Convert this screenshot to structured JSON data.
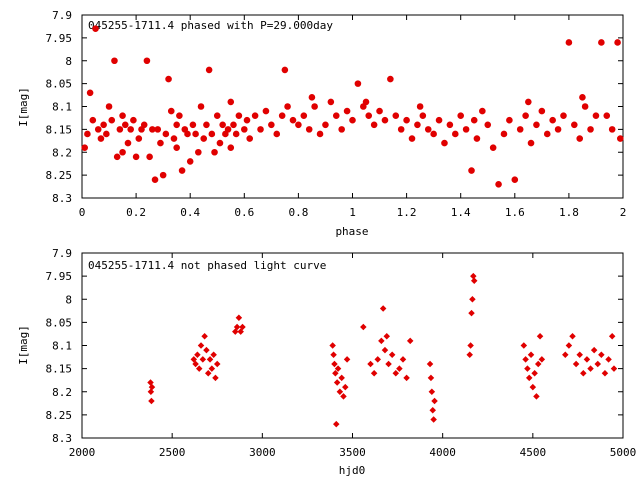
{
  "chart_data": [
    {
      "type": "scatter",
      "title": "045255-1711.4 phased with P=29.000day",
      "xlabel": "phase",
      "ylabel": "I[mag]",
      "xlim": [
        0,
        2
      ],
      "ylim": [
        8.3,
        7.9
      ],
      "y_inverted": true,
      "x_ticks": [
        "0",
        "0.2",
        "0.4",
        "0.6",
        "0.8",
        "1",
        "1.2",
        "1.4",
        "1.6",
        "1.8",
        "2"
      ],
      "y_ticks": [
        "7.9",
        "7.95",
        "8",
        "8.05",
        "8.1",
        "8.15",
        "8.2",
        "8.25",
        "8.3"
      ],
      "marker_color": "#e00000",
      "points": [
        [
          0.01,
          8.19
        ],
        [
          0.02,
          8.16
        ],
        [
          0.03,
          8.07
        ],
        [
          0.04,
          8.13
        ],
        [
          0.05,
          7.93
        ],
        [
          0.06,
          8.15
        ],
        [
          0.07,
          8.17
        ],
        [
          0.08,
          8.14
        ],
        [
          0.09,
          8.16
        ],
        [
          0.1,
          8.1
        ],
        [
          0.11,
          8.13
        ],
        [
          0.12,
          8.0
        ],
        [
          0.13,
          8.21
        ],
        [
          0.14,
          8.15
        ],
        [
          0.15,
          8.12
        ],
        [
          0.16,
          8.14
        ],
        [
          0.17,
          8.18
        ],
        [
          0.18,
          8.15
        ],
        [
          0.19,
          8.13
        ],
        [
          0.2,
          8.21
        ],
        [
          0.21,
          8.17
        ],
        [
          0.22,
          8.15
        ],
        [
          0.23,
          8.14
        ],
        [
          0.24,
          8.0
        ],
        [
          0.25,
          8.21
        ],
        [
          0.26,
          8.15
        ],
        [
          0.27,
          8.26
        ],
        [
          0.28,
          8.15
        ],
        [
          0.29,
          8.18
        ],
        [
          0.3,
          8.25
        ],
        [
          0.31,
          8.16
        ],
        [
          0.32,
          8.04
        ],
        [
          0.33,
          8.11
        ],
        [
          0.34,
          8.17
        ],
        [
          0.35,
          8.19
        ],
        [
          0.36,
          8.12
        ],
        [
          0.37,
          8.24
        ],
        [
          0.38,
          8.15
        ],
        [
          0.39,
          8.16
        ],
        [
          0.4,
          8.22
        ],
        [
          0.41,
          8.14
        ],
        [
          0.42,
          8.16
        ],
        [
          0.43,
          8.2
        ],
        [
          0.44,
          8.1
        ],
        [
          0.45,
          8.17
        ],
        [
          0.46,
          8.14
        ],
        [
          0.47,
          8.02
        ],
        [
          0.48,
          8.16
        ],
        [
          0.49,
          8.2
        ],
        [
          0.5,
          8.12
        ],
        [
          0.51,
          8.18
        ],
        [
          0.52,
          8.14
        ],
        [
          0.53,
          8.16
        ],
        [
          0.54,
          8.15
        ],
        [
          0.55,
          8.09
        ],
        [
          0.56,
          8.14
        ],
        [
          0.57,
          8.16
        ],
        [
          0.58,
          8.12
        ],
        [
          0.6,
          8.15
        ],
        [
          0.61,
          8.13
        ],
        [
          0.62,
          8.17
        ],
        [
          0.64,
          8.12
        ],
        [
          0.66,
          8.15
        ],
        [
          0.68,
          8.11
        ],
        [
          0.7,
          8.14
        ],
        [
          0.72,
          8.16
        ],
        [
          0.74,
          8.12
        ],
        [
          0.75,
          8.02
        ],
        [
          0.76,
          8.1
        ],
        [
          0.78,
          8.13
        ],
        [
          0.8,
          8.14
        ],
        [
          0.82,
          8.12
        ],
        [
          0.84,
          8.15
        ],
        [
          0.86,
          8.1
        ],
        [
          0.88,
          8.16
        ],
        [
          0.9,
          8.14
        ],
        [
          0.92,
          8.09
        ],
        [
          0.94,
          8.12
        ],
        [
          0.96,
          8.15
        ],
        [
          0.98,
          8.11
        ],
        [
          1.0,
          8.13
        ],
        [
          1.02,
          8.05
        ],
        [
          1.04,
          8.1
        ],
        [
          1.06,
          8.12
        ],
        [
          1.08,
          8.14
        ],
        [
          1.1,
          8.11
        ],
        [
          1.12,
          8.13
        ],
        [
          1.14,
          8.04
        ],
        [
          1.16,
          8.12
        ],
        [
          1.18,
          8.15
        ],
        [
          1.2,
          8.13
        ],
        [
          1.22,
          8.17
        ],
        [
          1.24,
          8.14
        ],
        [
          1.26,
          8.12
        ],
        [
          1.28,
          8.15
        ],
        [
          1.3,
          8.16
        ],
        [
          1.32,
          8.13
        ],
        [
          1.34,
          8.18
        ],
        [
          1.36,
          8.14
        ],
        [
          1.38,
          8.16
        ],
        [
          1.4,
          8.12
        ],
        [
          1.42,
          8.15
        ],
        [
          1.44,
          8.24
        ],
        [
          1.46,
          8.17
        ],
        [
          1.48,
          8.11
        ],
        [
          1.5,
          8.14
        ],
        [
          1.52,
          8.19
        ],
        [
          1.54,
          8.27
        ],
        [
          1.56,
          8.16
        ],
        [
          1.58,
          8.13
        ],
        [
          1.6,
          8.26
        ],
        [
          1.62,
          8.15
        ],
        [
          1.64,
          8.12
        ],
        [
          1.66,
          8.18
        ],
        [
          1.68,
          8.14
        ],
        [
          1.7,
          8.11
        ],
        [
          1.72,
          8.16
        ],
        [
          1.74,
          8.13
        ],
        [
          1.76,
          8.15
        ],
        [
          1.78,
          8.12
        ],
        [
          1.8,
          7.96
        ],
        [
          1.82,
          8.14
        ],
        [
          1.84,
          8.17
        ],
        [
          1.86,
          8.1
        ],
        [
          1.88,
          8.15
        ],
        [
          1.9,
          8.12
        ],
        [
          1.92,
          7.96
        ],
        [
          1.94,
          8.12
        ],
        [
          1.96,
          8.15
        ],
        [
          1.98,
          7.96
        ],
        [
          1.99,
          8.17
        ],
        [
          0.15,
          8.2
        ],
        [
          0.35,
          8.14
        ],
        [
          0.55,
          8.19
        ],
        [
          0.85,
          8.08
        ],
        [
          1.05,
          8.09
        ],
        [
          1.25,
          8.1
        ],
        [
          1.45,
          8.13
        ],
        [
          1.65,
          8.09
        ],
        [
          1.85,
          8.08
        ]
      ]
    },
    {
      "type": "scatter",
      "title": "045255-1711.4 not phased light curve",
      "xlabel": "hjd0",
      "ylabel": "I[mag]",
      "xlim": [
        2000,
        5000
      ],
      "ylim": [
        8.3,
        7.9
      ],
      "y_inverted": true,
      "x_ticks": [
        "2000",
        "2500",
        "3000",
        "3500",
        "4000",
        "4500",
        "5000"
      ],
      "y_ticks": [
        "7.9",
        "7.95",
        "8",
        "8.05",
        "8.1",
        "8.15",
        "8.2",
        "8.25",
        "8.3"
      ],
      "marker_color": "#e00000",
      "points": [
        [
          2380,
          8.18
        ],
        [
          2382,
          8.2
        ],
        [
          2385,
          8.22
        ],
        [
          2388,
          8.19
        ],
        [
          2620,
          8.13
        ],
        [
          2630,
          8.14
        ],
        [
          2640,
          8.12
        ],
        [
          2650,
          8.15
        ],
        [
          2660,
          8.1
        ],
        [
          2670,
          8.13
        ],
        [
          2680,
          8.08
        ],
        [
          2690,
          8.11
        ],
        [
          2700,
          8.16
        ],
        [
          2710,
          8.13
        ],
        [
          2720,
          8.15
        ],
        [
          2730,
          8.12
        ],
        [
          2740,
          8.17
        ],
        [
          2750,
          8.14
        ],
        [
          2850,
          8.07
        ],
        [
          2860,
          8.06
        ],
        [
          2870,
          8.04
        ],
        [
          2880,
          8.07
        ],
        [
          2890,
          8.06
        ],
        [
          3390,
          8.1
        ],
        [
          3395,
          8.12
        ],
        [
          3400,
          8.14
        ],
        [
          3405,
          8.16
        ],
        [
          3410,
          8.27
        ],
        [
          3415,
          8.18
        ],
        [
          3420,
          8.15
        ],
        [
          3430,
          8.2
        ],
        [
          3440,
          8.17
        ],
        [
          3450,
          8.21
        ],
        [
          3460,
          8.19
        ],
        [
          3470,
          8.13
        ],
        [
          3560,
          8.06
        ],
        [
          3600,
          8.14
        ],
        [
          3620,
          8.16
        ],
        [
          3640,
          8.13
        ],
        [
          3660,
          8.09
        ],
        [
          3670,
          8.02
        ],
        [
          3680,
          8.11
        ],
        [
          3690,
          8.08
        ],
        [
          3700,
          8.14
        ],
        [
          3720,
          8.12
        ],
        [
          3740,
          8.16
        ],
        [
          3760,
          8.15
        ],
        [
          3780,
          8.13
        ],
        [
          3800,
          8.17
        ],
        [
          3820,
          8.09
        ],
        [
          3930,
          8.14
        ],
        [
          3935,
          8.17
        ],
        [
          3940,
          8.2
        ],
        [
          3945,
          8.24
        ],
        [
          3950,
          8.26
        ],
        [
          3955,
          8.22
        ],
        [
          4150,
          8.12
        ],
        [
          4155,
          8.1
        ],
        [
          4160,
          8.03
        ],
        [
          4165,
          8.0
        ],
        [
          4170,
          7.95
        ],
        [
          4175,
          7.96
        ],
        [
          4450,
          8.1
        ],
        [
          4460,
          8.13
        ],
        [
          4470,
          8.15
        ],
        [
          4480,
          8.17
        ],
        [
          4490,
          8.12
        ],
        [
          4500,
          8.19
        ],
        [
          4510,
          8.16
        ],
        [
          4520,
          8.21
        ],
        [
          4530,
          8.14
        ],
        [
          4540,
          8.08
        ],
        [
          4550,
          8.13
        ],
        [
          4680,
          8.12
        ],
        [
          4700,
          8.1
        ],
        [
          4720,
          8.08
        ],
        [
          4740,
          8.14
        ],
        [
          4760,
          8.12
        ],
        [
          4780,
          8.16
        ],
        [
          4800,
          8.13
        ],
        [
          4820,
          8.15
        ],
        [
          4840,
          8.11
        ],
        [
          4860,
          8.14
        ],
        [
          4880,
          8.12
        ],
        [
          4900,
          8.16
        ],
        [
          4920,
          8.13
        ],
        [
          4940,
          8.08
        ],
        [
          4950,
          8.15
        ]
      ]
    }
  ]
}
